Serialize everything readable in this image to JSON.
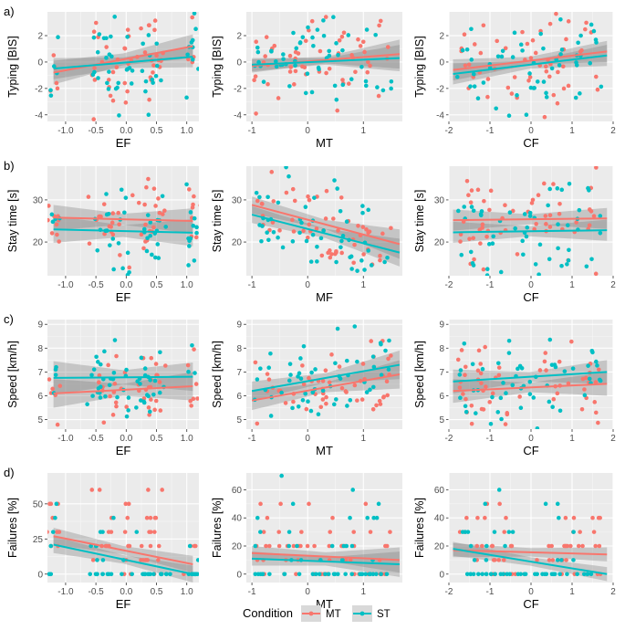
{
  "figure": {
    "rows": [
      {
        "label": "a)",
        "ylabel": "Typing [BIS]",
        "yticks": [
          -4,
          -2,
          0,
          2
        ],
        "ylim": [
          -4.5,
          3.8
        ],
        "panels": [
          {
            "xlabel": "EF",
            "xlim": [
              -1.3,
              1.2
            ],
            "xticks": [
              -1.0,
              -0.5,
              0.0,
              0.5,
              1.0
            ],
            "xtick_labels": [
              "-1.0",
              "-0.5",
              "0.0",
              "0.5",
              "1.0"
            ],
            "MT": {
              "fit": [
                [
                  -1.2,
                  -0.8
                ],
                [
                  1.1,
                  1.2
                ]
              ],
              "band": [
                0.9,
                0.45,
                0.9
              ]
            },
            "ST": {
              "fit": [
                [
                  -1.2,
                  -0.5
                ],
                [
                  1.1,
                  0.4
                ]
              ],
              "band": [
                0.8,
                0.4,
                0.8
              ]
            }
          },
          {
            "xlabel": "MT",
            "xlim": [
              -1.1,
              1.7
            ],
            "xticks": [
              -1,
              0,
              1
            ],
            "xtick_labels": [
              "-1",
              "0",
              "1"
            ],
            "MT": {
              "fit": [
                [
                  -1.0,
                  -0.3
                ],
                [
                  1.65,
                  0.6
                ]
              ],
              "band": [
                0.5,
                0.25,
                1.1
              ]
            },
            "ST": {
              "fit": [
                [
                  -1.0,
                  -0.2
                ],
                [
                  1.65,
                  0.3
                ]
              ],
              "band": [
                0.5,
                0.25,
                1.0
              ]
            }
          },
          {
            "xlabel": "CF",
            "xlim": [
              -2.0,
              2.0
            ],
            "xticks": [
              -2,
              -1,
              0,
              1,
              2
            ],
            "xtick_labels": [
              "-2",
              "-1",
              "0",
              "1",
              "2"
            ],
            "MT": {
              "fit": [
                [
                  -1.9,
                  -0.6
                ],
                [
                  1.85,
                  0.8
                ]
              ],
              "band": [
                0.8,
                0.3,
                0.8
              ]
            },
            "ST": {
              "fit": [
                [
                  -1.9,
                  -0.9
                ],
                [
                  1.85,
                  0.5
                ]
              ],
              "band": [
                0.8,
                0.3,
                0.8
              ]
            }
          }
        ]
      },
      {
        "label": "b)",
        "ylabel": "Stay time [s]",
        "yticks": [
          20,
          30
        ],
        "ylim": [
          12,
          38
        ],
        "panels": [
          {
            "xlabel": "EF",
            "xlim": [
              -1.3,
              1.2
            ],
            "xticks": [
              -1.0,
              -0.5,
              0.0,
              0.5,
              1.0
            ],
            "xtick_labels": [
              "-1.0",
              "-0.5",
              "0.0",
              "0.5",
              "1.0"
            ],
            "MT": {
              "fit": [
                [
                  -1.2,
                  25.8
                ],
                [
                  1.1,
                  25.0
                ]
              ],
              "band": [
                3.0,
                1.3,
                3.0
              ]
            },
            "ST": {
              "fit": [
                [
                  -1.2,
                  23.0
                ],
                [
                  1.1,
                  22.2
                ]
              ],
              "band": [
                3.2,
                1.4,
                3.2
              ]
            }
          },
          {
            "xlabel": "MF",
            "xlim": [
              -1.1,
              1.7
            ],
            "xticks": [
              -1,
              0,
              1
            ],
            "xtick_labels": [
              "-1",
              "0",
              "1"
            ],
            "MT": {
              "fit": [
                [
                  -1.0,
                  28.8
                ],
                [
                  1.65,
                  19.5
                ]
              ],
              "band": [
                2.0,
                1.1,
                3.5
              ]
            },
            "ST": {
              "fit": [
                [
                  -1.0,
                  26.5
                ],
                [
                  1.65,
                  17.5
                ]
              ],
              "band": [
                2.0,
                1.1,
                3.3
              ]
            }
          },
          {
            "xlabel": "CF",
            "xlim": [
              -2.0,
              2.0
            ],
            "xticks": [
              -2,
              -1,
              0,
              1,
              2
            ],
            "xtick_labels": [
              "-2",
              "-1",
              "0",
              "1",
              "2"
            ],
            "MT": {
              "fit": [
                [
                  -1.9,
                  25.2
                ],
                [
                  1.85,
                  25.6
                ]
              ],
              "band": [
                2.5,
                1.2,
                2.5
              ]
            },
            "ST": {
              "fit": [
                [
                  -1.9,
                  22.3
                ],
                [
                  1.85,
                  22.8
                ]
              ],
              "band": [
                2.5,
                1.2,
                2.5
              ]
            }
          }
        ]
      },
      {
        "label": "c)",
        "ylabel": "Speed [km/h]",
        "yticks": [
          5,
          6,
          7,
          8,
          9
        ],
        "ylim": [
          4.6,
          9.2
        ],
        "panels": [
          {
            "xlabel": "EF",
            "xlim": [
              -1.3,
              1.2
            ],
            "xticks": [
              -1.0,
              -0.5,
              0.0,
              0.5,
              1.0
            ],
            "xtick_labels": [
              "-1.0",
              "-0.5",
              "0.0",
              "0.5",
              "1.0"
            ],
            "MT": {
              "fit": [
                [
                  -1.2,
                  6.1
                ],
                [
                  1.1,
                  6.4
                ]
              ],
              "band": [
                0.6,
                0.25,
                0.6
              ]
            },
            "ST": {
              "fit": [
                [
                  -1.2,
                  6.75
                ],
                [
                  1.1,
                  6.8
                ]
              ],
              "band": [
                0.7,
                0.3,
                0.6
              ]
            }
          },
          {
            "xlabel": "MT",
            "xlim": [
              -1.1,
              1.7
            ],
            "xticks": [
              -1,
              0,
              1
            ],
            "xtick_labels": [
              "-1",
              "0",
              "1"
            ],
            "MT": {
              "fit": [
                [
                  -1.0,
                  5.8
                ],
                [
                  1.65,
                  6.9
                ]
              ],
              "band": [
                0.4,
                0.2,
                0.6
              ]
            },
            "ST": {
              "fit": [
                [
                  -1.0,
                  6.2
                ],
                [
                  1.65,
                  7.3
                ]
              ],
              "band": [
                0.4,
                0.2,
                0.6
              ]
            }
          },
          {
            "xlabel": "CF",
            "xlim": [
              -2.0,
              2.0
            ],
            "xticks": [
              -2,
              -1,
              0,
              1,
              2
            ],
            "xtick_labels": [
              "-2",
              "-1",
              "0",
              "1",
              "2"
            ],
            "MT": {
              "fit": [
                [
                  -1.9,
                  6.2
                ],
                [
                  1.85,
                  6.5
                ]
              ],
              "band": [
                0.5,
                0.2,
                0.5
              ]
            },
            "ST": {
              "fit": [
                [
                  -1.9,
                  6.6
                ],
                [
                  1.85,
                  7.0
                ]
              ],
              "band": [
                0.5,
                0.2,
                0.5
              ]
            }
          }
        ]
      },
      {
        "label": "d)",
        "ylabel": "Failures [%]",
        "yticks": [
          0,
          25,
          50
        ],
        "yticks_alt": [
          0,
          20,
          40,
          60
        ],
        "ylim": [
          -6,
          72
        ],
        "panels": [
          {
            "xlabel": "EF",
            "xlim": [
              -1.3,
              1.2
            ],
            "xticks": [
              -1.0,
              -0.5,
              0.0,
              0.5,
              1.0
            ],
            "xtick_labels": [
              "-1.0",
              "-0.5",
              "0.0",
              "0.5",
              "1.0"
            ],
            "ytick_set": "main",
            "MT": {
              "fit": [
                [
                  -1.2,
                  27
                ],
                [
                  1.1,
                  7
                ]
              ],
              "band": [
                6,
                3,
                6
              ]
            },
            "ST": {
              "fit": [
                [
                  -1.2,
                  21
                ],
                [
                  1.1,
                  0
                ]
              ],
              "band": [
                6,
                3,
                6
              ]
            }
          },
          {
            "xlabel": "MT",
            "xlim": [
              -1.1,
              1.7
            ],
            "xticks": [
              -1,
              0,
              1
            ],
            "xtick_labels": [
              "-1",
              "0",
              "1"
            ],
            "ytick_set": "alt",
            "MT": {
              "fit": [
                [
                  -1.0,
                  15
                ],
                [
                  1.65,
                  10
                ]
              ],
              "band": [
                5,
                3,
                9
              ]
            },
            "ST": {
              "fit": [
                [
                  -1.0,
                  11
                ],
                [
                  1.65,
                  7
                ]
              ],
              "band": [
                5,
                3,
                9
              ]
            }
          },
          {
            "xlabel": "CF",
            "xlim": [
              -2.0,
              2.0
            ],
            "xticks": [
              -2,
              -1,
              0,
              1,
              2
            ],
            "xtick_labels": [
              "-2",
              "-1",
              "0",
              "1",
              "2"
            ],
            "ytick_set": "alt",
            "MT": {
              "fit": [
                [
                  -1.9,
                  17
                ],
                [
                  1.85,
                  14
                ]
              ],
              "band": [
                5,
                3,
                5
              ]
            },
            "ST": {
              "fit": [
                [
                  -1.9,
                  18
                ],
                [
                  1.85,
                  0
                ]
              ],
              "band": [
                5,
                3,
                5
              ]
            }
          }
        ]
      }
    ],
    "legend": {
      "title": "Condition",
      "entries": [
        {
          "key": "MT",
          "label": "MT",
          "color": "#F8766D"
        },
        {
          "key": "ST",
          "label": "ST",
          "color": "#00BFC4"
        }
      ]
    }
  },
  "chart_data": {
    "type": "scatter",
    "note": "Grid of 12 scatter plots with linear regression lines and 95% confidence bands by Condition (MT, ST). Points are approximate.",
    "seed": 1337
  }
}
